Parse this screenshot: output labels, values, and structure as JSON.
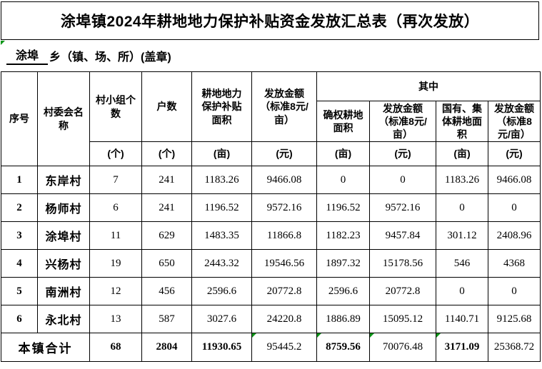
{
  "title": "涂埠镇2024年耕地地力保护补贴资金发放汇总表（再次发放）",
  "subtitle": {
    "township": "涂埠",
    "suffix": "乡（镇、场、所）(盖章)"
  },
  "colors": {
    "flag_green": "#0c9618",
    "border": "#000000",
    "background": "#ffffff"
  },
  "icons": {
    "cell_comment_flag": "green-corner-triangle"
  },
  "table": {
    "headers": {
      "index": "序号",
      "village": "村委会名\n称",
      "groups": "村小组个\n数",
      "households": "户数",
      "subsidy_area": "耕地地力\n保护补贴\n面积",
      "amount": "发放金额\n（标准8元/\n亩）",
      "among": "其中",
      "confirmed_area": "确权耕地\n面积",
      "confirmed_amount": "发放金额\n（标准8元/\n亩）",
      "state_area": "国有、集\n体耕地面\n积",
      "state_amount": "发放金额\n（标准8\n元/亩）"
    },
    "units": [
      "(个)",
      "(个)",
      "(亩)",
      "(元)",
      "(亩)",
      "(元)",
      "(亩)",
      "(元)"
    ],
    "rows": [
      {
        "index": "1",
        "village": "东岸村",
        "values": [
          "7",
          "241",
          "1183.26",
          "9466.08",
          "0",
          "0",
          "1183.26",
          "9466.08"
        ]
      },
      {
        "index": "2",
        "village": "杨师村",
        "values": [
          "6",
          "241",
          "1196.52",
          "9572.16",
          "1196.52",
          "9572.16",
          "0",
          "0"
        ]
      },
      {
        "index": "3",
        "village": "涂埠村",
        "values": [
          "11",
          "629",
          "1483.35",
          "11866.8",
          "1182.23",
          "9457.84",
          "301.12",
          "2408.96"
        ]
      },
      {
        "index": "4",
        "village": "兴杨村",
        "values": [
          "19",
          "650",
          "2443.32",
          "19546.56",
          "1897.32",
          "15178.56",
          "546",
          "4368"
        ]
      },
      {
        "index": "5",
        "village": "南洲村",
        "values": [
          "12",
          "456",
          "2596.6",
          "20772.8",
          "2596.6",
          "20772.8",
          "0",
          "0"
        ]
      },
      {
        "index": "6",
        "village": "永北村",
        "values": [
          "13",
          "587",
          "3027.6",
          "24220.8",
          "1886.89",
          "15095.12",
          "1140.71",
          "9125.68"
        ]
      }
    ],
    "total": {
      "label": "本镇合计",
      "values": [
        "68",
        "2804",
        "11930.65",
        "95445.2",
        "8759.56",
        "70076.48",
        "3171.09",
        "25368.72"
      ],
      "bold": [
        true,
        true,
        true,
        false,
        true,
        false,
        true,
        false
      ],
      "flagged": [
        false,
        false,
        false,
        true,
        true,
        true,
        true,
        false
      ]
    }
  }
}
